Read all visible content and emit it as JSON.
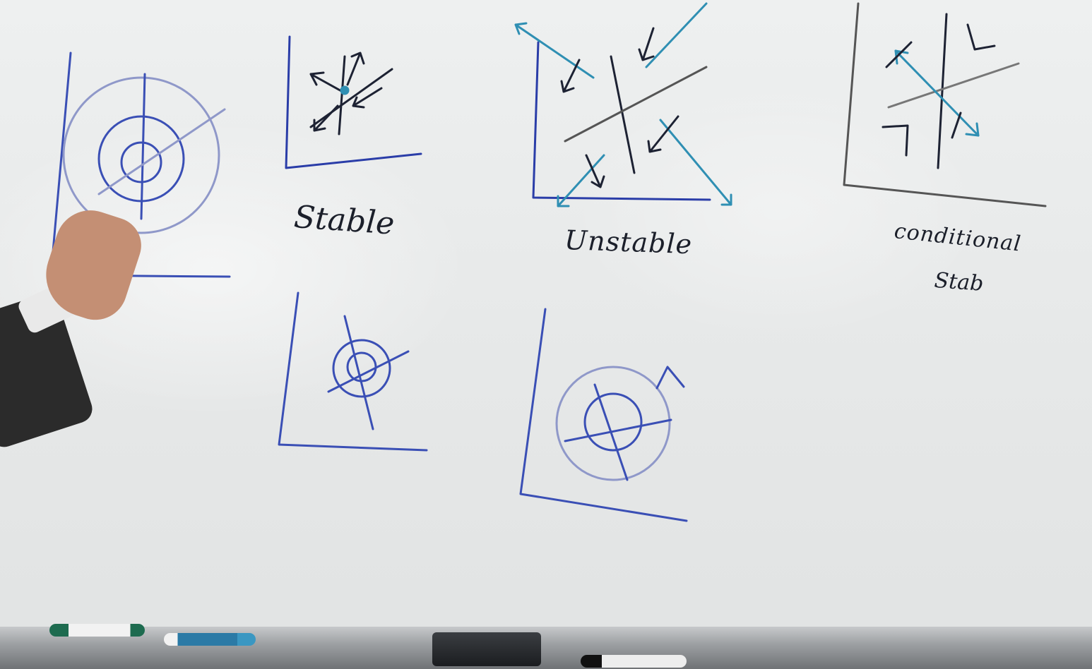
{
  "board": {
    "labels": {
      "stable": "Stable",
      "unstable": "Unstable",
      "conditional_line1": "conditional",
      "conditional_line2": "Stab"
    }
  },
  "colors": {
    "ink_blue": "#2a3da8",
    "ink_dark": "#1b1f2a",
    "ink_teal": "#2f8fb3",
    "board_white": "#eef0f0"
  }
}
